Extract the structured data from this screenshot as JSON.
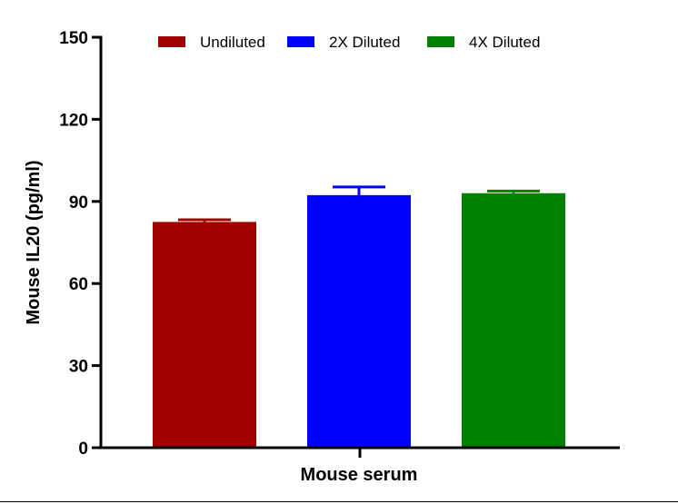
{
  "chart_data": {
    "type": "bar",
    "title": "",
    "xlabel": "Mouse serum",
    "ylabel": "Mouse IL20 (pg/ml)",
    "ylim": [
      0,
      150
    ],
    "yticks": [
      "0",
      "30",
      "60",
      "90",
      "120",
      "150"
    ],
    "grid": false,
    "legend_position": "top",
    "series": [
      {
        "name": "Undiluted",
        "value": 82.5,
        "error": 0.8,
        "color": "#a00000"
      },
      {
        "name": "2X Diluted",
        "value": 92.3,
        "error": 3.0,
        "color": "#0000ff"
      },
      {
        "name": "4X Diluted",
        "value": 93.0,
        "error": 0.8,
        "color": "#008000"
      }
    ]
  }
}
